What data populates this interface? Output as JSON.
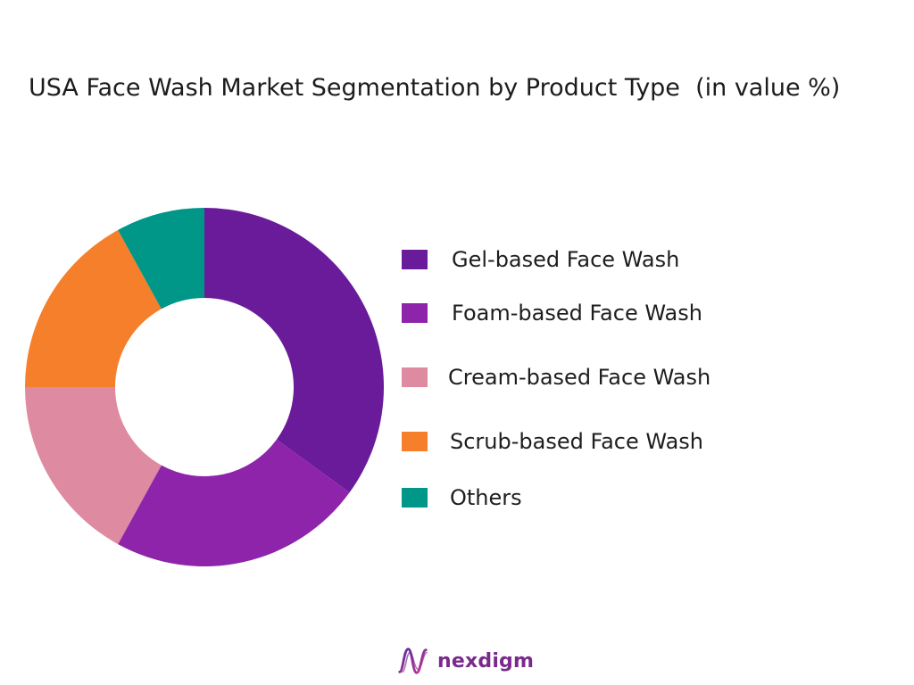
{
  "chart_data": {
    "type": "pie",
    "variant": "donut",
    "title": "USA Face Wash Market Segmentation by Product Type  (in value %)",
    "categories": [
      "Gel-based Face Wash",
      "Foam-based Face Wash",
      "Cream-based Face Wash",
      "Scrub-based Face Wash",
      "Others"
    ],
    "values": [
      35,
      23,
      17,
      17,
      8
    ],
    "colors": [
      "#6a1b9a",
      "#8e24aa",
      "#de8aa0",
      "#f57f2a",
      "#009688"
    ],
    "legend_position": "right"
  },
  "brand": {
    "name": "nexdigm",
    "logo_icon": "nexdigm-wave-logo-icon"
  }
}
